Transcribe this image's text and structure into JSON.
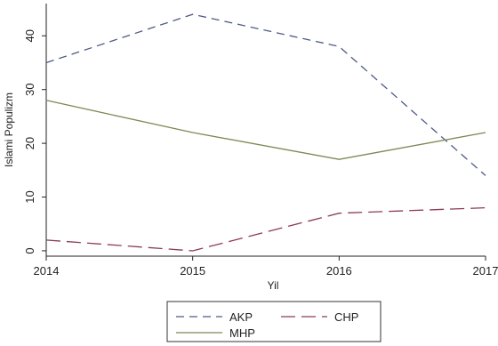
{
  "chart_data": {
    "type": "line",
    "title": "",
    "xlabel": "Yil",
    "ylabel": "Islami Populizm",
    "x": [
      2014,
      2015,
      2016,
      2017
    ],
    "xlim": [
      2014,
      2017
    ],
    "ylim": [
      -1,
      46
    ],
    "yticks": [
      0,
      10,
      20,
      30,
      40
    ],
    "grid": false,
    "legend_position": "bottom",
    "series": [
      {
        "name": "AKP",
        "values": [
          35,
          44,
          38,
          14
        ],
        "color": "#4f5a86",
        "style": "dashed"
      },
      {
        "name": "CHP",
        "values": [
          2,
          0,
          7,
          8
        ],
        "color": "#8c3a56",
        "style": "long-dash"
      },
      {
        "name": "MHP",
        "values": [
          28,
          22,
          17,
          22
        ],
        "color": "#7b8a55",
        "style": "solid"
      }
    ]
  }
}
